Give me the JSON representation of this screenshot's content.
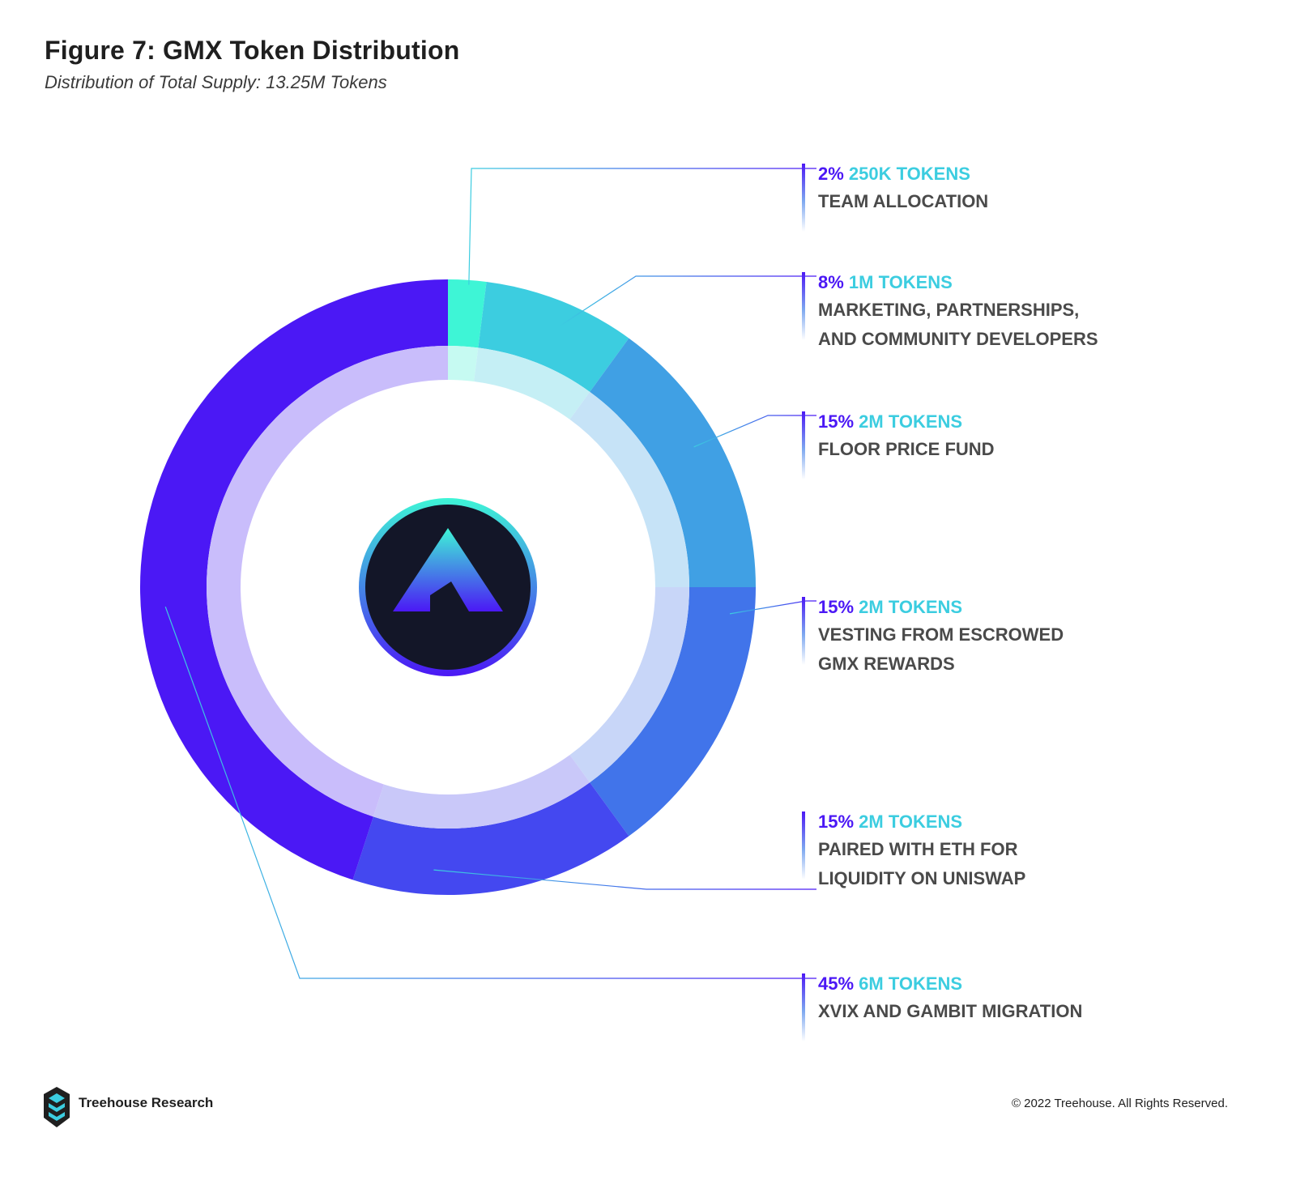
{
  "header": {
    "title": "Figure 7: GMX Token Distribution",
    "subtitle": "Distribution of Total Supply: 13.25M Tokens"
  },
  "chart_data": {
    "type": "pie",
    "variant": "donut",
    "total_tokens": "13.25M",
    "slices": [
      {
        "percent": 2,
        "percent_label": "2%",
        "tokens_label": "250K TOKENS",
        "lines": [
          "TEAM ALLOCATION"
        ],
        "color": "#3ef5d6",
        "inner_color": "#c6faf2"
      },
      {
        "percent": 8,
        "percent_label": "8%",
        "tokens_label": "1M TOKENS",
        "lines": [
          "MARKETING, PARTNERSHIPS,",
          "AND COMMUNITY DEVELOPERS"
        ],
        "color": "#3ccde0",
        "inner_color": "#c5eff5"
      },
      {
        "percent": 15,
        "percent_label": "15%",
        "tokens_label": "2M TOKENS",
        "lines": [
          "FLOOR PRICE FUND"
        ],
        "color": "#40a0e4",
        "inner_color": "#c6e3f7"
      },
      {
        "percent": 15,
        "percent_label": "15%",
        "tokens_label": "2M TOKENS",
        "lines": [
          "VESTING FROM ESCROWED",
          "GMX REWARDS"
        ],
        "color": "#4174ea",
        "inner_color": "#c8d6f8"
      },
      {
        "percent": 15,
        "percent_label": "15%",
        "tokens_label": "2M TOKENS",
        "lines": [
          "PAIRED WITH ETH FOR",
          "LIQUIDITY ON UNISWAP"
        ],
        "color": "#4448f0",
        "inner_color": "#c9c8f9"
      },
      {
        "percent": 45,
        "percent_label": "45%",
        "tokens_label": "6M TOKENS",
        "lines": [
          "XVIX AND GAMBIT MIGRATION"
        ],
        "color": "#4b18f5",
        "inner_color": "#c9bdfb"
      }
    ],
    "start_angle_deg": 0,
    "direction": "clockwise",
    "center_icon": "gmx-logo-icon",
    "colors": {
      "percent_text": "#4b18f5",
      "tokens_text": "#3ccde0",
      "desc_text": "#4a4a4a"
    }
  },
  "footer": {
    "brand": "Treehouse Research",
    "brand_icon": "treehouse-logo-icon",
    "copyright": "© 2022 Treehouse. All Rights Reserved."
  }
}
